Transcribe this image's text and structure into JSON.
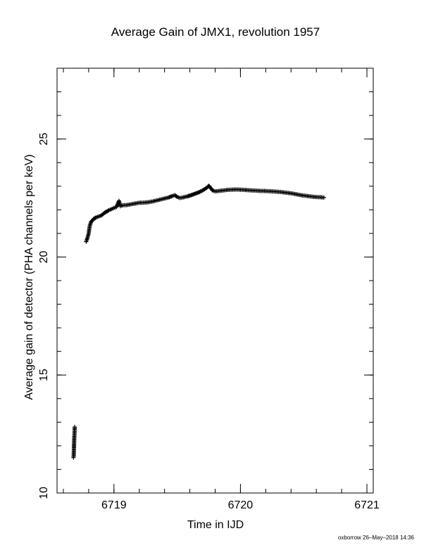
{
  "chart_data": {
    "type": "scatter",
    "title": "Average Gain of JMX1, revolution 1957",
    "xlabel": "Time in IJD",
    "ylabel": "Average gain of detector (PHA channels per keV)",
    "xlim": [
      6718.55,
      6721.05
    ],
    "ylim": [
      10,
      28
    ],
    "x_ticks": [
      6719,
      6720,
      6721
    ],
    "y_ticks": [
      10,
      15,
      20,
      25
    ],
    "x_minor_step": 0.2,
    "y_minor_step": 1,
    "marker": "+",
    "grid": false,
    "series": [
      {
        "points": [
          [
            6718.68,
            11.5
          ],
          [
            6718.682,
            11.6
          ],
          [
            6718.686,
            12.3
          ],
          [
            6718.688,
            12.5
          ],
          [
            6718.69,
            12.8
          ],
          [
            6718.78,
            20.65
          ],
          [
            6718.79,
            20.8
          ],
          [
            6718.8,
            21.0
          ],
          [
            6718.805,
            21.2
          ],
          [
            6718.81,
            21.35
          ],
          [
            6718.82,
            21.5
          ],
          [
            6718.83,
            21.55
          ],
          [
            6718.84,
            21.62
          ],
          [
            6718.86,
            21.68
          ],
          [
            6718.88,
            21.72
          ],
          [
            6718.9,
            21.76
          ],
          [
            6718.92,
            21.85
          ],
          [
            6718.94,
            21.92
          ],
          [
            6718.96,
            21.98
          ],
          [
            6718.98,
            22.03
          ],
          [
            6719.0,
            22.08
          ],
          [
            6719.02,
            22.12
          ],
          [
            6719.03,
            22.25
          ],
          [
            6719.04,
            22.38
          ],
          [
            6719.05,
            22.15
          ],
          [
            6719.06,
            22.18
          ],
          [
            6719.08,
            22.2
          ],
          [
            6719.1,
            22.2
          ],
          [
            6719.12,
            22.22
          ],
          [
            6719.14,
            22.24
          ],
          [
            6719.16,
            22.26
          ],
          [
            6719.18,
            22.28
          ],
          [
            6719.2,
            22.3
          ],
          [
            6719.22,
            22.3
          ],
          [
            6719.25,
            22.31
          ],
          [
            6719.28,
            22.33
          ],
          [
            6719.31,
            22.36
          ],
          [
            6719.34,
            22.4
          ],
          [
            6719.37,
            22.44
          ],
          [
            6719.4,
            22.48
          ],
          [
            6719.43,
            22.52
          ],
          [
            6719.46,
            22.58
          ],
          [
            6719.48,
            22.62
          ],
          [
            6719.5,
            22.55
          ],
          [
            6719.52,
            22.5
          ],
          [
            6719.55,
            22.53
          ],
          [
            6719.58,
            22.57
          ],
          [
            6719.61,
            22.62
          ],
          [
            6719.64,
            22.68
          ],
          [
            6719.67,
            22.74
          ],
          [
            6719.7,
            22.82
          ],
          [
            6719.73,
            22.92
          ],
          [
            6719.75,
            23.02
          ],
          [
            6719.765,
            22.92
          ],
          [
            6719.78,
            22.82
          ],
          [
            6719.8,
            22.78
          ],
          [
            6719.83,
            22.8
          ],
          [
            6719.86,
            22.82
          ],
          [
            6719.89,
            22.84
          ],
          [
            6719.92,
            22.85
          ],
          [
            6719.95,
            22.86
          ],
          [
            6719.98,
            22.86
          ],
          [
            6720.01,
            22.85
          ],
          [
            6720.04,
            22.84
          ],
          [
            6720.07,
            22.83
          ],
          [
            6720.1,
            22.82
          ],
          [
            6720.13,
            22.81
          ],
          [
            6720.16,
            22.8
          ],
          [
            6720.19,
            22.8
          ],
          [
            6720.22,
            22.79
          ],
          [
            6720.25,
            22.78
          ],
          [
            6720.28,
            22.77
          ],
          [
            6720.31,
            22.76
          ],
          [
            6720.34,
            22.74
          ],
          [
            6720.37,
            22.72
          ],
          [
            6720.4,
            22.7
          ],
          [
            6720.43,
            22.67
          ],
          [
            6720.46,
            22.64
          ],
          [
            6720.49,
            22.61
          ],
          [
            6720.52,
            22.59
          ],
          [
            6720.55,
            22.57
          ],
          [
            6720.58,
            22.55
          ],
          [
            6720.61,
            22.54
          ],
          [
            6720.64,
            22.53
          ],
          [
            6720.66,
            22.52
          ]
        ]
      }
    ]
  },
  "footer": {
    "credit": "oxborrow 26–May–2018 14:36"
  }
}
